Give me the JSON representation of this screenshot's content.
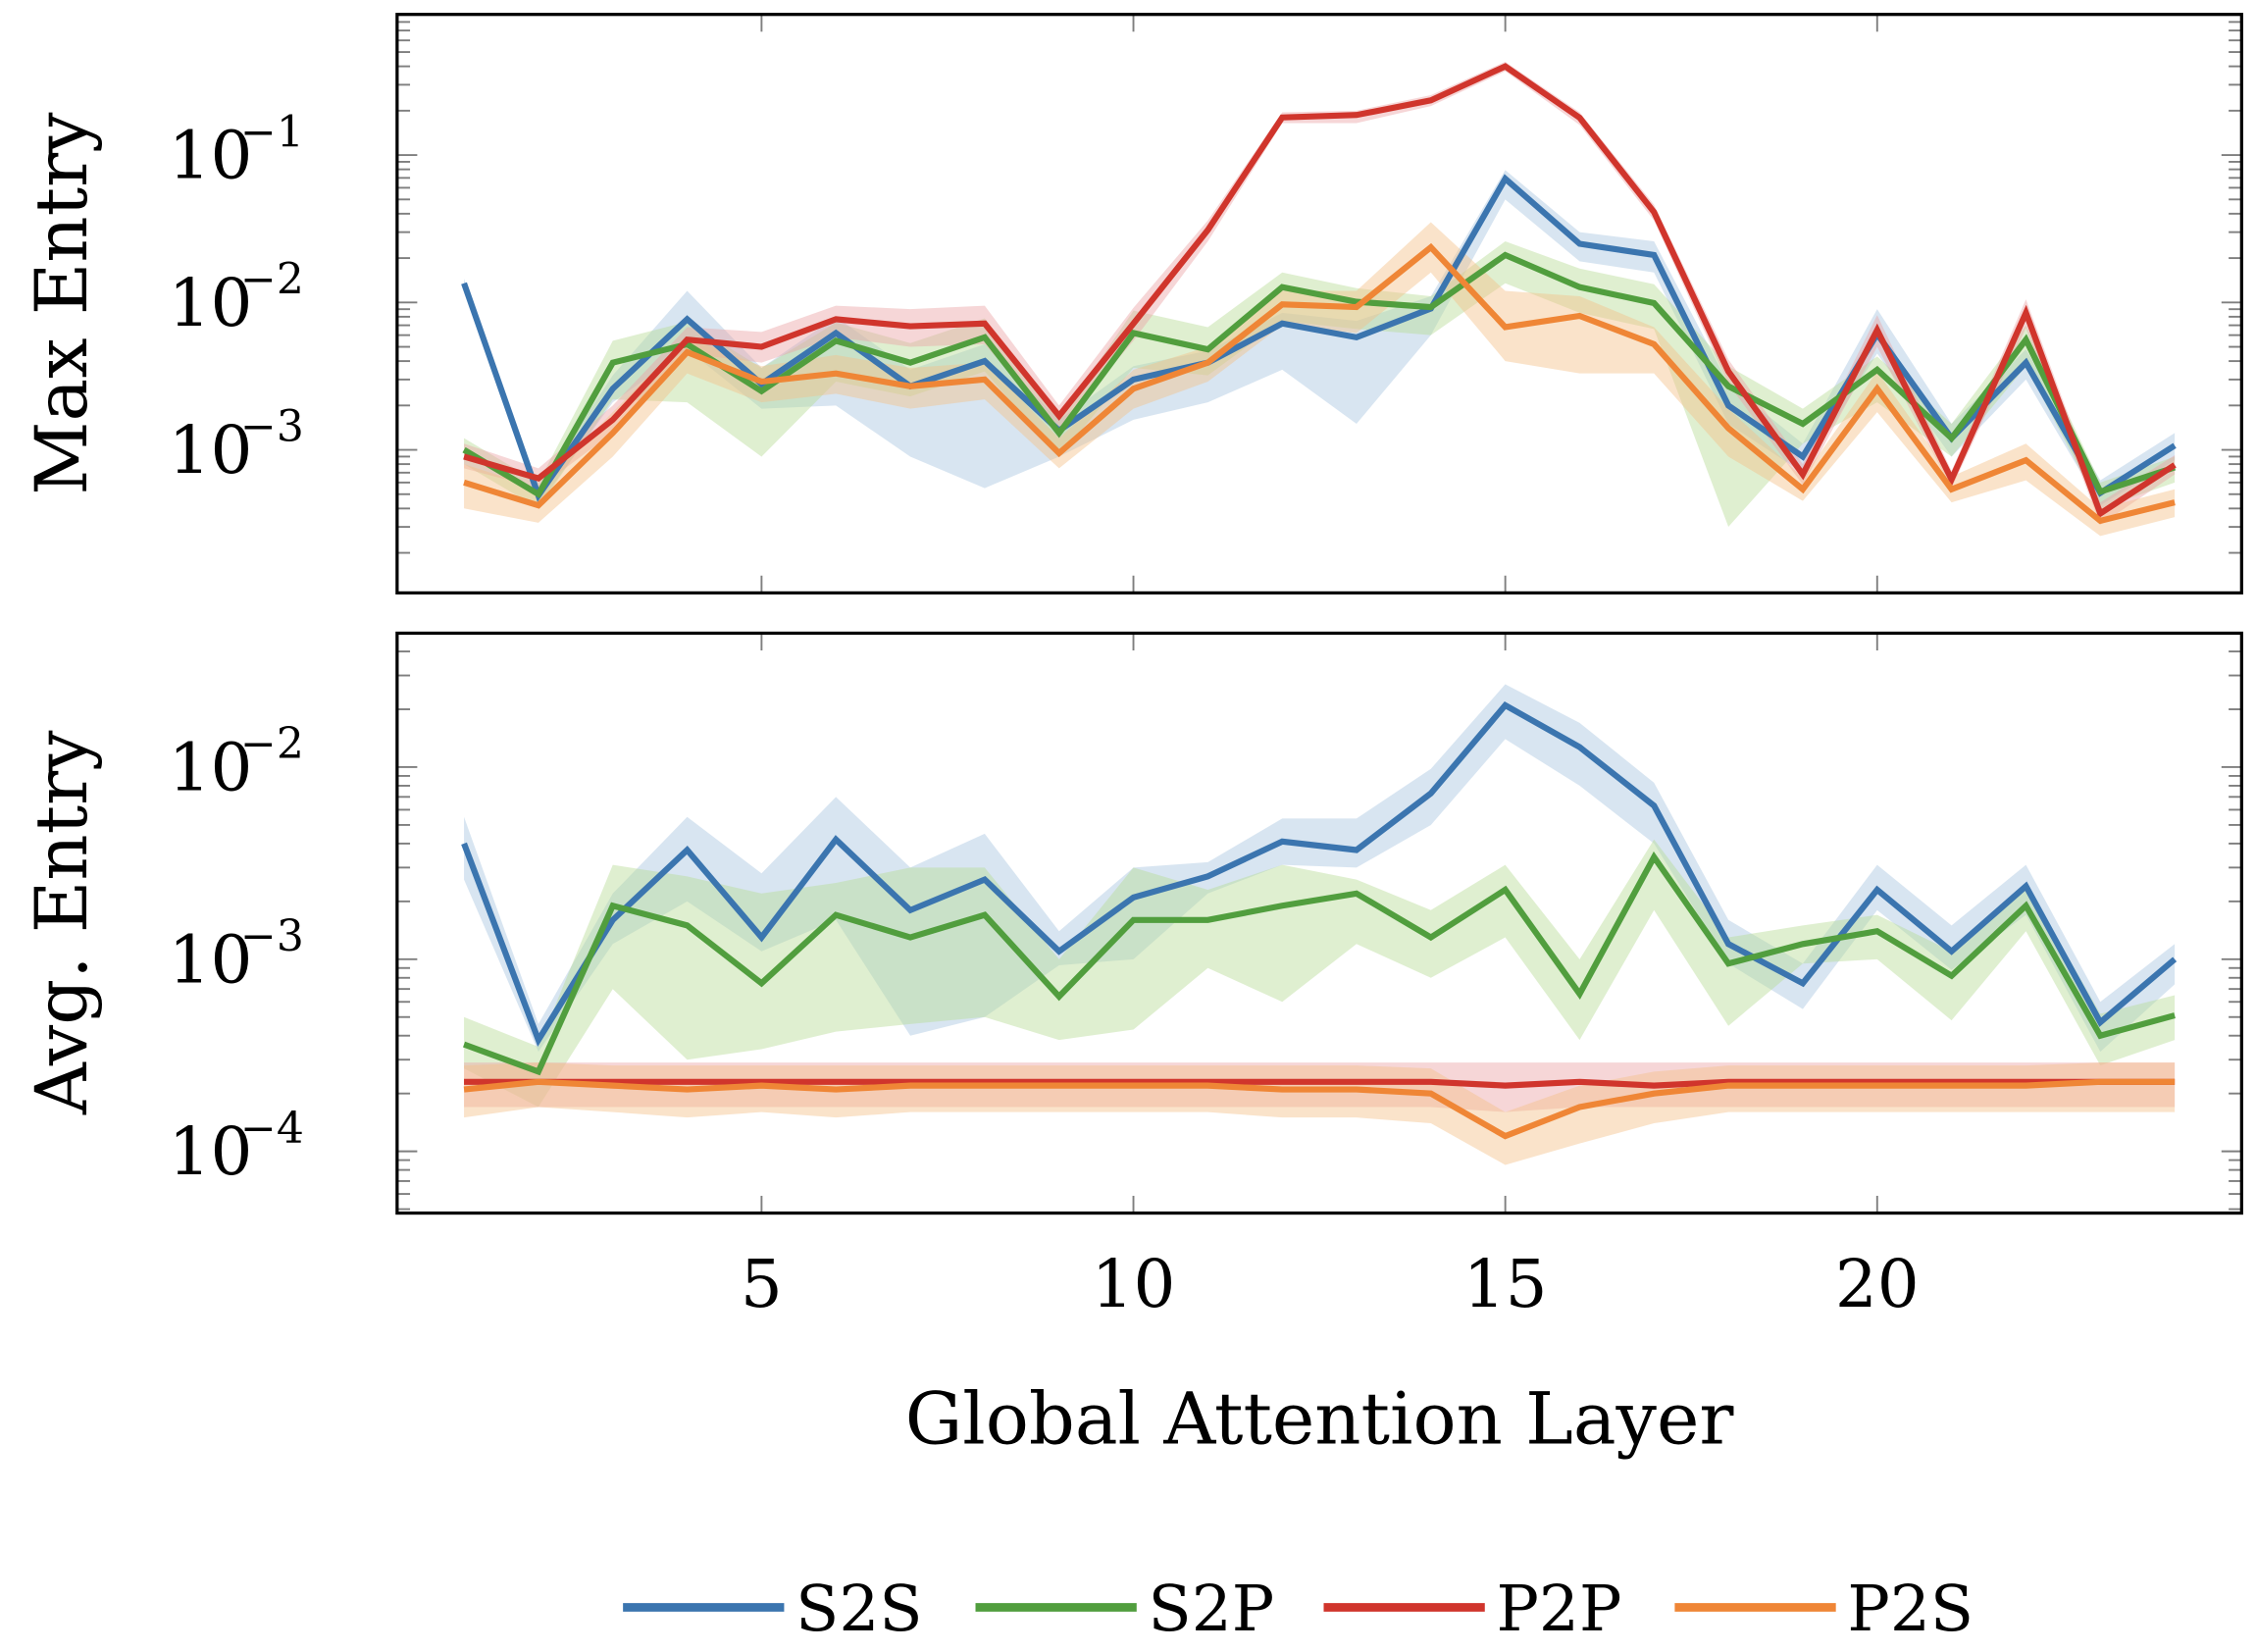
{
  "chart_data": {
    "type": "line",
    "title": "",
    "xlabel": "Global Attention Layer",
    "x": [
      1,
      2,
      3,
      4,
      5,
      6,
      7,
      8,
      9,
      10,
      11,
      12,
      13,
      14,
      15,
      16,
      17,
      18,
      19,
      20,
      21,
      22,
      23,
      24
    ],
    "xlim": [
      0.1,
      24.9
    ],
    "xticks": [
      5,
      10,
      15,
      20
    ],
    "xtick_labels": [
      "5",
      "10",
      "15",
      "20"
    ],
    "grid": false,
    "legend": {
      "placement": "bottom-center",
      "entries": [
        "S2S",
        "S2P",
        "P2P",
        "P2S"
      ]
    },
    "colors": {
      "S2S": "#3b75af",
      "S2P": "#519e3e",
      "P2P": "#d0352c",
      "P2S": "#ef8636"
    },
    "band_colors": {
      "S2S": "#a8c6e0",
      "S2P": "#b7dc96",
      "P2P": "#eba3a6",
      "P2S": "#f3c28a"
    },
    "panels": [
      {
        "ylabel": "Max Entry",
        "yscale": "log",
        "ylim": [
          0.000107,
          0.9
        ],
        "yticks": [
          0.1,
          0.01,
          0.001
        ],
        "ytick_labels": [
          {
            "base": "10",
            "exp": "−1"
          },
          {
            "base": "10",
            "exp": "−2"
          },
          {
            "base": "10",
            "exp": "−3"
          }
        ],
        "series": [
          {
            "name": "S2S",
            "values": [
              0.0135,
              0.00049,
              0.0026,
              0.0077,
              0.0028,
              0.0062,
              0.0027,
              0.004,
              0.00135,
              0.003,
              0.0039,
              0.0072,
              0.0058,
              0.0091,
              0.069,
              0.025,
              0.021,
              0.002,
              0.0009,
              0.0061,
              0.0012,
              0.0039,
              0.00051,
              0.00107
            ],
            "lower": [
              0.012,
              0.00042,
              0.0021,
              0.0048,
              0.0019,
              0.002,
              0.0009,
              0.00055,
              0.0009,
              0.0016,
              0.0021,
              0.0035,
              0.0015,
              0.006,
              0.05,
              0.019,
              0.016,
              0.0015,
              0.0007,
              0.0045,
              0.0009,
              0.003,
              0.00042,
              0.00085
            ],
            "upper": [
              0.0145,
              0.00056,
              0.0032,
              0.012,
              0.0036,
              0.008,
              0.0035,
              0.0052,
              0.0016,
              0.0037,
              0.0047,
              0.0085,
              0.0075,
              0.011,
              0.079,
              0.03,
              0.026,
              0.0028,
              0.0011,
              0.009,
              0.0015,
              0.0048,
              0.00062,
              0.0013
            ]
          },
          {
            "name": "S2P",
            "values": [
              0.001,
              0.0005,
              0.0039,
              0.0052,
              0.0025,
              0.0055,
              0.0039,
              0.0058,
              0.0013,
              0.0062,
              0.0048,
              0.0127,
              0.0101,
              0.0093,
              0.021,
              0.0127,
              0.0099,
              0.0027,
              0.0015,
              0.0035,
              0.0012,
              0.0056,
              0.00052,
              0.00076
            ],
            "lower": [
              0.0008,
              0.0004,
              0.0022,
              0.0021,
              0.0009,
              0.0029,
              0.0023,
              0.0034,
              0.0009,
              0.0036,
              0.0032,
              0.0075,
              0.0066,
              0.006,
              0.0135,
              0.0085,
              0.0066,
              0.0003,
              0.0011,
              0.0021,
              0.0009,
              0.0037,
              0.0004,
              0.0006
            ],
            "upper": [
              0.0012,
              0.0006,
              0.0055,
              0.0074,
              0.0036,
              0.0073,
              0.0053,
              0.0078,
              0.0016,
              0.0088,
              0.0068,
              0.016,
              0.0125,
              0.011,
              0.026,
              0.017,
              0.0133,
              0.0037,
              0.0019,
              0.0043,
              0.0015,
              0.007,
              0.0006,
              0.0009
            ]
          },
          {
            "name": "P2P",
            "values": [
              0.0009,
              0.00064,
              0.0016,
              0.0056,
              0.005,
              0.0077,
              0.0069,
              0.0072,
              0.0017,
              0.0072,
              0.031,
              0.18,
              0.187,
              0.235,
              0.4,
              0.179,
              0.041,
              0.0034,
              0.00068,
              0.0065,
              0.00063,
              0.0085,
              0.00037,
              0.00079
            ],
            "lower": [
              0.00075,
              0.00055,
              0.0013,
              0.0045,
              0.0039,
              0.0058,
              0.005,
              0.0052,
              0.0014,
              0.0055,
              0.026,
              0.165,
              0.165,
              0.215,
              0.37,
              0.16,
              0.036,
              0.0028,
              0.00058,
              0.005,
              0.00055,
              0.0067,
              0.00031,
              0.00068
            ],
            "upper": [
              0.0011,
              0.00075,
              0.002,
              0.0068,
              0.0063,
              0.0095,
              0.009,
              0.0095,
              0.002,
              0.0092,
              0.036,
              0.195,
              0.2,
              0.255,
              0.43,
              0.195,
              0.046,
              0.0041,
              0.0008,
              0.0082,
              0.00072,
              0.0105,
              0.00044,
              0.00092
            ]
          },
          {
            "name": "P2S",
            "values": [
              0.0006,
              0.00042,
              0.0013,
              0.0046,
              0.0029,
              0.0033,
              0.0027,
              0.003,
              0.00095,
              0.0026,
              0.0039,
              0.0097,
              0.0093,
              0.0237,
              0.0068,
              0.0081,
              0.0052,
              0.0014,
              0.00054,
              0.0026,
              0.00054,
              0.00085,
              0.00033,
              0.00044
            ],
            "lower": [
              0.0004,
              0.00032,
              0.0009,
              0.0033,
              0.0021,
              0.0024,
              0.0019,
              0.0022,
              0.00075,
              0.0019,
              0.0029,
              0.007,
              0.0062,
              0.016,
              0.004,
              0.0033,
              0.0033,
              0.0009,
              0.00045,
              0.0018,
              0.00044,
              0.00062,
              0.00026,
              0.00035
            ],
            "upper": [
              0.0008,
              0.00055,
              0.0018,
              0.0058,
              0.0037,
              0.0044,
              0.0036,
              0.0039,
              0.0012,
              0.0035,
              0.005,
              0.012,
              0.012,
              0.035,
              0.012,
              0.011,
              0.0068,
              0.0019,
              0.00065,
              0.0034,
              0.00066,
              0.0011,
              0.0004,
              0.00054
            ]
          }
        ]
      },
      {
        "ylabel": "Avg. Entry",
        "yscale": "log",
        "ylim": [
          4.77e-05,
          0.0498
        ],
        "yticks": [
          0.01,
          0.001,
          0.0001
        ],
        "ytick_labels": [
          {
            "base": "10",
            "exp": "−2"
          },
          {
            "base": "10",
            "exp": "−3"
          },
          {
            "base": "10",
            "exp": "−4"
          }
        ],
        "series": [
          {
            "name": "S2S",
            "values": [
              0.004,
              0.00038,
              0.0016,
              0.0037,
              0.0013,
              0.0042,
              0.0018,
              0.0026,
              0.0011,
              0.0021,
              0.0027,
              0.0041,
              0.0037,
              0.0073,
              0.021,
              0.0127,
              0.0063,
              0.0012,
              0.00075,
              0.0023,
              0.0011,
              0.0024,
              0.00047,
              0.001
            ],
            "lower": [
              0.0026,
              0.00033,
              0.0012,
              0.002,
              0.0011,
              0.0016,
              0.0004,
              0.0005,
              0.00093,
              0.001,
              0.0022,
              0.0031,
              0.003,
              0.005,
              0.014,
              0.008,
              0.004,
              0.00095,
              0.00055,
              0.0018,
              0.00088,
              0.0017,
              0.00033,
              0.00074
            ],
            "upper": [
              0.0055,
              0.00046,
              0.0022,
              0.0055,
              0.0028,
              0.007,
              0.003,
              0.0045,
              0.0014,
              0.003,
              0.0032,
              0.0054,
              0.0054,
              0.0098,
              0.027,
              0.017,
              0.0083,
              0.0016,
              0.00095,
              0.0031,
              0.0015,
              0.0031,
              0.0006,
              0.0012
            ]
          },
          {
            "name": "S2P",
            "values": [
              0.00036,
              0.00026,
              0.0019,
              0.0015,
              0.00075,
              0.0017,
              0.0013,
              0.0017,
              0.00064,
              0.0016,
              0.0016,
              0.0019,
              0.0022,
              0.0013,
              0.0023,
              0.00066,
              0.0034,
              0.00095,
              0.0012,
              0.0014,
              0.00082,
              0.0019,
              0.0004,
              0.00051
            ],
            "lower": [
              0.00027,
              0.00017,
              0.0007,
              0.0003,
              0.00034,
              0.00042,
              0.00046,
              0.0005,
              0.00038,
              0.00043,
              0.0009,
              0.0006,
              0.0012,
              0.0008,
              0.0013,
              0.00038,
              0.0018,
              0.00045,
              0.00095,
              0.001,
              0.00048,
              0.0014,
              0.00028,
              0.00038
            ],
            "upper": [
              0.0005,
              0.00035,
              0.0031,
              0.0027,
              0.0022,
              0.0025,
              0.003,
              0.003,
              0.001,
              0.003,
              0.0023,
              0.0031,
              0.0026,
              0.0018,
              0.0031,
              0.001,
              0.0042,
              0.0013,
              0.0015,
              0.0017,
              0.0011,
              0.0025,
              0.00052,
              0.00065
            ]
          },
          {
            "name": "P2P",
            "values": [
              0.00023,
              0.00023,
              0.00023,
              0.00023,
              0.00023,
              0.00023,
              0.00023,
              0.00023,
              0.00023,
              0.00023,
              0.00023,
              0.00023,
              0.00023,
              0.00023,
              0.00022,
              0.00023,
              0.00022,
              0.00023,
              0.00023,
              0.00023,
              0.00023,
              0.00023,
              0.00023,
              0.00023
            ],
            "lower": [
              0.00017,
              0.00017,
              0.00017,
              0.00017,
              0.00017,
              0.00017,
              0.00017,
              0.00017,
              0.00017,
              0.00017,
              0.00017,
              0.00017,
              0.00017,
              0.00017,
              0.00016,
              0.00017,
              0.00017,
              0.00017,
              0.00017,
              0.00017,
              0.00017,
              0.00017,
              0.00017,
              0.00017
            ],
            "upper": [
              0.00029,
              0.00029,
              0.00029,
              0.00029,
              0.00029,
              0.00029,
              0.00029,
              0.00029,
              0.00029,
              0.00029,
              0.00029,
              0.00029,
              0.00029,
              0.00029,
              0.00029,
              0.00029,
              0.00029,
              0.00029,
              0.00029,
              0.00029,
              0.00029,
              0.00029,
              0.00029,
              0.00029
            ]
          },
          {
            "name": "P2S",
            "values": [
              0.00021,
              0.00023,
              0.00022,
              0.00021,
              0.00022,
              0.00021,
              0.00022,
              0.00022,
              0.00022,
              0.00022,
              0.00022,
              0.00021,
              0.00021,
              0.0002,
              0.00012,
              0.00017,
              0.0002,
              0.00022,
              0.00022,
              0.00022,
              0.00022,
              0.00022,
              0.00023,
              0.00023
            ],
            "lower": [
              0.00015,
              0.00017,
              0.00016,
              0.00015,
              0.00016,
              0.00015,
              0.00016,
              0.00016,
              0.00016,
              0.00016,
              0.00016,
              0.00015,
              0.00015,
              0.00014,
              8.5e-05,
              0.00011,
              0.00014,
              0.00016,
              0.00016,
              0.00016,
              0.00016,
              0.00016,
              0.00016,
              0.00016
            ],
            "upper": [
              0.00028,
              0.00029,
              0.00028,
              0.00028,
              0.00028,
              0.00028,
              0.00028,
              0.00028,
              0.00028,
              0.00028,
              0.00028,
              0.00028,
              0.00028,
              0.00027,
              0.00016,
              0.00022,
              0.00026,
              0.00028,
              0.00028,
              0.00028,
              0.00028,
              0.00028,
              0.00029,
              0.00029
            ]
          }
        ]
      }
    ]
  }
}
